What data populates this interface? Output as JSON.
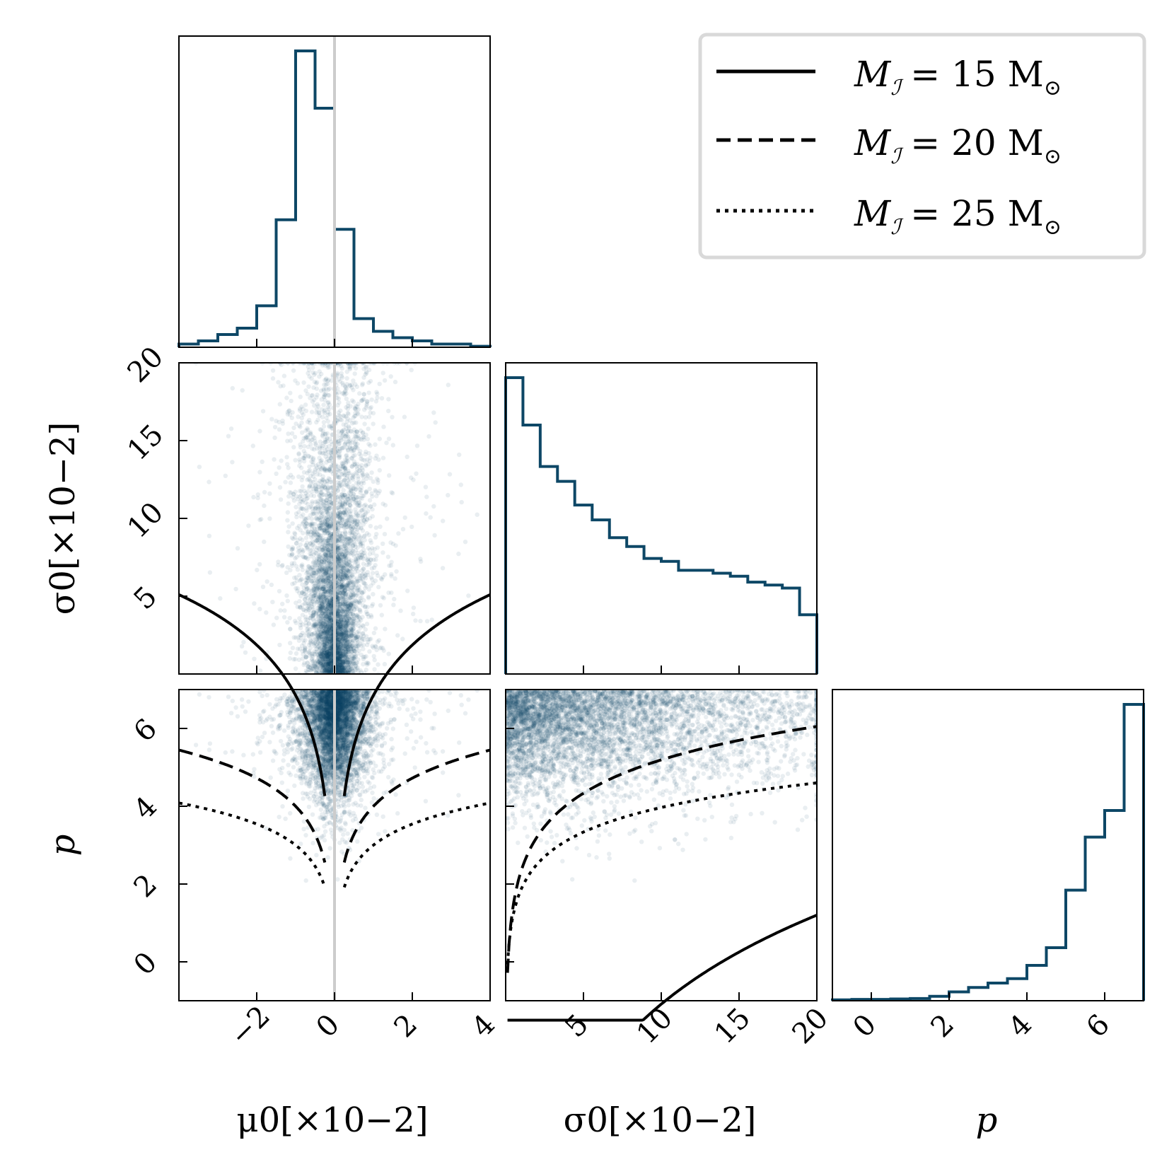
{
  "colors": {
    "posterior": "#0d4766",
    "truth": "#cccccc",
    "curves": "#000000",
    "frame": "#000000",
    "legend_border": "#d9d9d9"
  },
  "chart_data": {
    "type": "corner",
    "parameters": [
      "mu0",
      "sigma0",
      "p"
    ],
    "axis_labels": {
      "mu0": "μ0[×10−2]",
      "sigma0": "σ0[×10−2]",
      "p": "p"
    },
    "ranges": {
      "mu0": [
        -4,
        4
      ],
      "sigma0": [
        0,
        20
      ],
      "p": [
        -1,
        7
      ]
    },
    "ticks": {
      "mu0": {
        "values": [
          -2,
          0,
          2,
          4
        ],
        "labels": [
          "−2",
          "0",
          "2",
          "4"
        ]
      },
      "sigma0": {
        "values": [
          5,
          10,
          15,
          20
        ],
        "labels": [
          "5",
          "10",
          "15",
          "20"
        ]
      },
      "p": {
        "values": [
          0,
          2,
          4,
          6
        ],
        "labels": [
          "0",
          "2",
          "4",
          "6"
        ]
      }
    },
    "truth": {
      "mu0": 0
    },
    "hist_mu0": {
      "edges": [
        -4,
        -3.5,
        -3,
        -2.5,
        -2,
        -1.5,
        -1,
        -0.5,
        0,
        0.5,
        1,
        1.5,
        2,
        2.5,
        3,
        3.5,
        4
      ],
      "values": [
        1,
        2,
        4,
        6,
        13,
        40,
        93,
        75,
        37,
        9,
        5,
        3,
        2,
        1,
        1,
        0.3
      ]
    },
    "hist_sigma0": {
      "edges": [
        0,
        1.11,
        2.22,
        3.33,
        4.44,
        5.56,
        6.67,
        7.78,
        8.89,
        10,
        11.11,
        12.22,
        13.33,
        14.44,
        15.56,
        16.67,
        17.78,
        18.89,
        20
      ],
      "values": [
        100,
        84,
        70,
        65,
        57,
        52,
        46,
        43,
        39,
        38,
        35,
        35,
        34,
        33,
        31,
        30,
        29,
        20
      ]
    },
    "hist_p": {
      "edges": [
        -1,
        -0.5,
        0,
        0.5,
        1,
        1.5,
        2,
        2.5,
        3,
        3.5,
        4,
        4.5,
        5,
        5.5,
        6,
        6.5,
        7
      ],
      "values": [
        0.2,
        0.3,
        0.3,
        0.4,
        0.5,
        1,
        2,
        3,
        4,
        5,
        8,
        12,
        25,
        37,
        43,
        67
      ]
    },
    "curves": [
      {
        "name": "M_I = 15 M_sun",
        "style": "solid",
        "A": 4.3
      },
      {
        "name": "M_I = 20 M_sun",
        "style": "dashed",
        "A": 2.4
      },
      {
        "name": "M_I = 25 M_sun",
        "style": "dotted",
        "A": 1.8
      }
    ],
    "curve_model": "p = A * log10(4 * |x| / scale)"
  },
  "legend": {
    "entries": [
      {
        "style": "solid",
        "lhs": "M",
        "sub": "ℐ",
        "rhs": "= 15 M",
        "sun": "⊙"
      },
      {
        "style": "dashed",
        "lhs": "M",
        "sub": "ℐ",
        "rhs": "= 20 M",
        "sun": "⊙"
      },
      {
        "style": "dotted",
        "lhs": "M",
        "sub": "ℐ",
        "rhs": "= 25 M",
        "sun": "⊙"
      }
    ]
  }
}
